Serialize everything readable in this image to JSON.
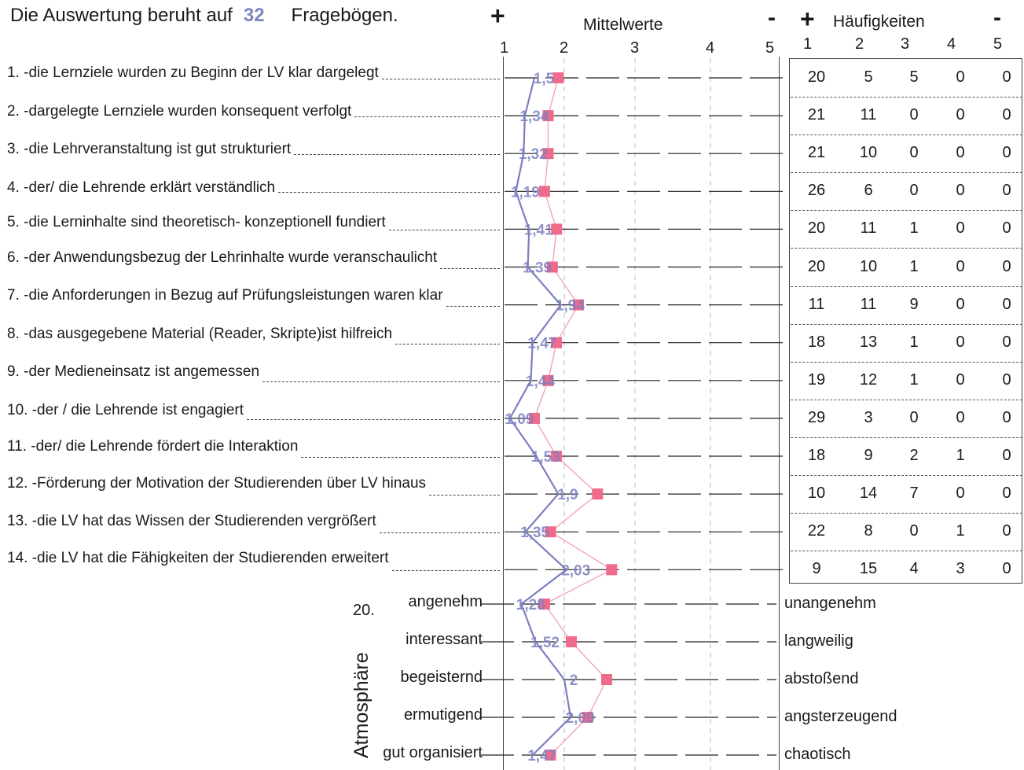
{
  "header": {
    "prefix": "Die Auswertung beruht auf",
    "count": "32",
    "suffix": "Fragebögen."
  },
  "means_section": {
    "title": "Mittelwerte",
    "plus": "+",
    "minus": "-",
    "scale": [
      "1",
      "2",
      "3",
      "4",
      "5"
    ]
  },
  "freq_section": {
    "title": "Häufigkeiten",
    "plus": "+",
    "minus": "-",
    "scale": [
      "1",
      "2",
      "3",
      "4",
      "5"
    ]
  },
  "atmosphere": {
    "label": "Atmosphäre",
    "number": "20."
  },
  "colors": {
    "mean_line": "#7b7fc0",
    "marker": "#f06a8c",
    "marker_line": "#f4a3b8"
  },
  "chart_data": {
    "type": "line",
    "title": "Mittelwerte",
    "xlim": [
      1,
      5
    ],
    "questions": [
      {
        "label": "1. -die Lernziele wurden zu Beginn der LV klar dargelegt",
        "mean": 1.5,
        "mean_text": "1,5",
        "marker": 1.9,
        "freq": [
          "20",
          "5",
          "5",
          "0",
          "0"
        ]
      },
      {
        "label": "2. -dargelegte Lernziele wurden  konsequent verfolgt",
        "mean": 1.34,
        "mean_text": "1,34",
        "marker": 1.73,
        "freq": [
          "21",
          "11",
          "0",
          "0",
          "0"
        ]
      },
      {
        "label": "3. -die Lehrveranstaltung ist gut strukturiert",
        "mean": 1.32,
        "mean_text": "1,32",
        "marker": 1.73,
        "freq": [
          "21",
          "10",
          "0",
          "0",
          "0"
        ]
      },
      {
        "label": "4. -der/ die Lehrende erklärt verständlich",
        "mean": 1.19,
        "mean_text": "1,19",
        "marker": 1.67,
        "freq": [
          "26",
          "6",
          "0",
          "0",
          "0"
        ]
      },
      {
        "label": "5. -die  Lerninhalte sind theoretisch- konzeptionell fundiert",
        "mean": 1.41,
        "mean_text": "1,41",
        "marker": 1.87,
        "freq": [
          "20",
          "11",
          "1",
          "0",
          "0"
        ]
      },
      {
        "label": "6. -der Anwendungsbezug der Lehrinhalte wurde veranschaulicht",
        "mean": 1.39,
        "mean_text": "1,39",
        "marker": 1.8,
        "freq": [
          "20",
          "10",
          "1",
          "0",
          "0"
        ]
      },
      {
        "label": "7. -die Anforderungen in Bezug auf Prüfungsleistungen waren klar",
        "mean": 1.94,
        "mean_text": "1,94",
        "marker": 2.2,
        "freq": [
          "11",
          "11",
          "9",
          "0",
          "0"
        ]
      },
      {
        "label": "8. -das ausgegebene Material (Reader, Skripte)ist hilfreich",
        "mean": 1.47,
        "mean_text": "1,47",
        "marker": 1.87,
        "freq": [
          "18",
          "13",
          "1",
          "0",
          "0"
        ]
      },
      {
        "label": "9. -der Medieneinsatz ist angemessen",
        "mean": 1.44,
        "mean_text": "1,44",
        "marker": 1.73,
        "freq": [
          "19",
          "12",
          "1",
          "0",
          "0"
        ]
      },
      {
        "label": "10. -der / die Lehrende ist engagiert",
        "mean": 1.09,
        "mean_text": "1,09",
        "marker": 1.5,
        "freq": [
          "29",
          "3",
          "0",
          "0",
          "0"
        ]
      },
      {
        "label": "11. -der/ die Lehrende fördert die Interaktion",
        "mean": 1.53,
        "mean_text": "1,53",
        "marker": 1.87,
        "freq": [
          "18",
          "9",
          "2",
          "1",
          "0"
        ]
      },
      {
        "label": "12. -Förderung der Motivation der Studierenden  über LV hinaus",
        "mean": 1.9,
        "mean_text": "1,9",
        "marker": 2.47,
        "freq": [
          "10",
          "14",
          "7",
          "0",
          "0"
        ]
      },
      {
        "label": "13. -die LV hat das Wissen der Studierenden vergrößert",
        "mean": 1.35,
        "mean_text": "1,35",
        "marker": 1.77,
        "freq": [
          "22",
          "8",
          "0",
          "1",
          "0"
        ]
      },
      {
        "label": "14. -die LV hat die Fähigkeiten der Studierenden erweitert",
        "mean": 2.03,
        "mean_text": "2,03",
        "marker": 2.67,
        "freq": [
          "9",
          "15",
          "4",
          "3",
          "0"
        ]
      }
    ],
    "semantic": [
      {
        "left": "angenehm",
        "right": "unangenehm",
        "mean": 1.28,
        "mean_text": "1,28",
        "marker": 1.67
      },
      {
        "left": "interessant",
        "right": "langweilig",
        "mean": 1.52,
        "mean_text": "1,52",
        "marker": 2.1
      },
      {
        "left": "begeisternd",
        "right": "abstoßend",
        "mean": 2.0,
        "mean_text": "2",
        "marker": 2.6
      },
      {
        "left": "ermutigend",
        "right": "angsterzeugend",
        "mean": 2.09,
        "mean_text": "2,09",
        "marker": 2.33
      },
      {
        "left": "gut organisiert",
        "right": "chaotisch",
        "mean": 1.47,
        "mean_text": "1,47",
        "marker": 1.77
      }
    ]
  }
}
